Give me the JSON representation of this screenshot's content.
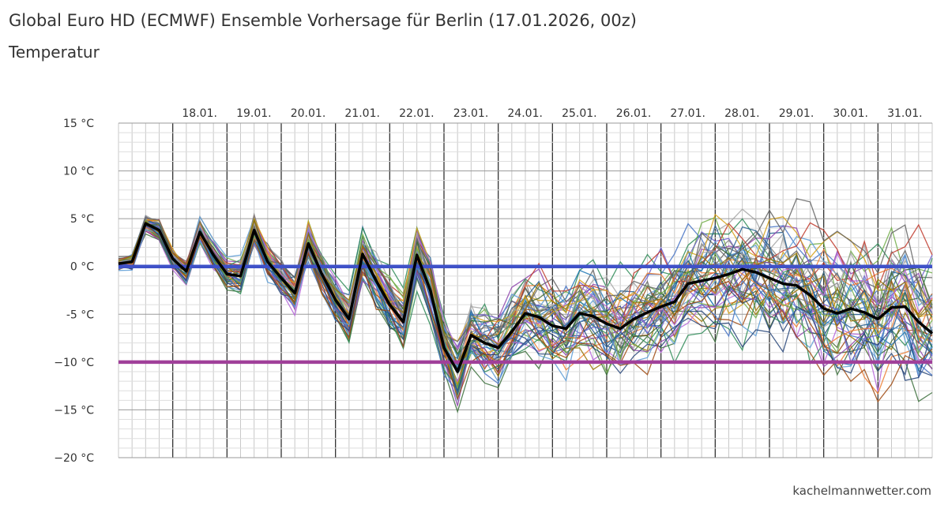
{
  "header": {
    "title": "Global Euro HD (ECMWF) Ensemble Vorhersage für Berlin (17.01.2026, 00z)",
    "subtitle": "Temperatur"
  },
  "footer": {
    "credits": "kachelmannwetter.com"
  },
  "colors": {
    "control": "#000000",
    "zero_line": "#3f51c8",
    "minus_ten_line": "#a0409a",
    "grid": "#c8c8c8",
    "day_grid": "#333333",
    "members": [
      "#4472c4",
      "#ed7d31",
      "#a5a5a5",
      "#5b9bd5",
      "#70ad47",
      "#264478",
      "#9e480e",
      "#636363",
      "#997300",
      "#255e91",
      "#43682b",
      "#8e44ad",
      "#c0392b",
      "#2e8b57",
      "#6a5acd",
      "#d4a017",
      "#1f77b4",
      "#7f7f7f",
      "#b565d9",
      "#3b6e3b"
    ]
  },
  "chart_data": {
    "type": "line",
    "title": "Global Euro HD (ECMWF) Ensemble Vorhersage für Berlin (17.01.2026, 00z)",
    "subtitle": "Temperatur",
    "x_unit": "hours after 17.01.2026 00z",
    "x_range": [
      0,
      360
    ],
    "x_step_hours": 6,
    "day_labels": [
      {
        "hour": 24,
        "label": "18.01."
      },
      {
        "hour": 48,
        "label": "19.01."
      },
      {
        "hour": 72,
        "label": "20.01."
      },
      {
        "hour": 96,
        "label": "21.01."
      },
      {
        "hour": 120,
        "label": "22.01."
      },
      {
        "hour": 144,
        "label": "23.01."
      },
      {
        "hour": 168,
        "label": "24.01."
      },
      {
        "hour": 192,
        "label": "25.01."
      },
      {
        "hour": 216,
        "label": "26.01."
      },
      {
        "hour": 240,
        "label": "27.01."
      },
      {
        "hour": 264,
        "label": "28.01."
      },
      {
        "hour": 288,
        "label": "29.01."
      },
      {
        "hour": 312,
        "label": "30.01."
      },
      {
        "hour": 336,
        "label": "31.01."
      }
    ],
    "ylim": [
      -20,
      15
    ],
    "y_ticks": [
      {
        "value": 15,
        "label": "15 °C"
      },
      {
        "value": 10,
        "label": "10 °C"
      },
      {
        "value": 5,
        "label": "5 °C"
      },
      {
        "value": 0,
        "label": "0 °C"
      },
      {
        "value": -5,
        "label": "-5 °C"
      },
      {
        "value": -10,
        "label": "−10 °C"
      },
      {
        "value": -15,
        "label": "−15 °C"
      },
      {
        "value": -20,
        "label": "−20 °C"
      }
    ],
    "grid": true,
    "reference_lines": [
      0,
      -10
    ],
    "member_count": 50,
    "control": {
      "x": [
        0,
        6,
        12,
        18,
        24,
        30,
        36,
        42,
        48,
        54,
        60,
        66,
        72,
        78,
        84,
        90,
        96,
        102,
        108,
        114,
        120,
        126,
        132,
        138,
        144,
        150,
        156,
        162,
        168,
        174,
        180,
        186,
        192,
        198,
        204,
        210,
        216,
        222,
        228,
        234,
        240,
        246,
        252,
        258,
        264,
        270,
        276,
        282,
        288,
        294,
        300,
        306,
        312,
        318,
        324,
        330,
        336,
        342,
        348,
        354,
        360
      ],
      "y": [
        0.3,
        0.5,
        4.5,
        3.8,
        0.8,
        -0.5,
        3.6,
        1.2,
        -0.8,
        -1.0,
        3.8,
        0.5,
        -1.2,
        -2.8,
        2.4,
        -0.8,
        -3.5,
        -5.5,
        1.3,
        -1.5,
        -4.0,
        -5.8,
        1.2,
        -2.5,
        -8.5,
        -11.0,
        -7.2,
        -8.0,
        -8.5,
        -6.8,
        -4.9,
        -5.3,
        -6.2,
        -6.5,
        -4.9,
        -5.2,
        -6.0,
        -6.5,
        -5.5,
        -4.8,
        -4.2,
        -3.7,
        -1.8,
        -1.5,
        -1.2,
        -0.8,
        -0.3,
        -0.6,
        -1.2,
        -1.8,
        -2.0,
        -3.0,
        -4.4,
        -4.9,
        -4.4,
        -4.8,
        -5.5,
        -4.3,
        -4.2,
        -5.8,
        -7.0
      ]
    }
  }
}
